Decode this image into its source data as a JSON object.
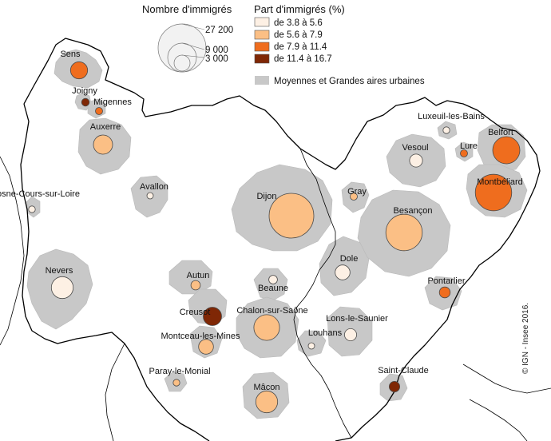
{
  "legend": {
    "size_title": "Nombre d'immigrés",
    "size_values": [
      "27 200",
      "9 000",
      "3 000"
    ],
    "share_title": "Part d'immigrés (%)",
    "classes": [
      {
        "label": "de 3.8 à 5.6",
        "color": "#fdf0e4"
      },
      {
        "label": "de 5.6 à 7.9",
        "color": "#fbbf85"
      },
      {
        "label": "de 7.9 à 11.4",
        "color": "#ef6d1e"
      },
      {
        "label": "de 11.4 à 16.7",
        "color": "#7f2705"
      }
    ],
    "area_label": "Moyennes et Grandes aires urbaines",
    "area_color": "#c8c8c8"
  },
  "credit": "© IGN - Insee 2016.",
  "cities": [
    {
      "name": "Sens",
      "class": 2,
      "immigres": 4000
    },
    {
      "name": "Joigny",
      "class": 3,
      "immigres": 800
    },
    {
      "name": "Migennes",
      "class": 2,
      "immigres": 700
    },
    {
      "name": "Auxerre",
      "class": 1,
      "immigres": 5000
    },
    {
      "name": "Avallon",
      "class": 0,
      "immigres": 500
    },
    {
      "name": "Cosne-Cours-sur-Loire",
      "class": 0,
      "immigres": 600
    },
    {
      "name": "Nevers",
      "class": 0,
      "immigres": 6500
    },
    {
      "name": "Autun",
      "class": 1,
      "immigres": 1200
    },
    {
      "name": "Creusot",
      "class": 3,
      "immigres": 4600
    },
    {
      "name": "Montceau-les-Mines",
      "class": 1,
      "immigres": 3000
    },
    {
      "name": "Paray-le-Monial",
      "class": 1,
      "immigres": 600
    },
    {
      "name": "Dijon",
      "class": 1,
      "immigres": 27200
    },
    {
      "name": "Beaune",
      "class": 0,
      "immigres": 1000
    },
    {
      "name": "Chalon-sur-Saône",
      "class": 1,
      "immigres": 9000
    },
    {
      "name": "Mâcon",
      "class": 1,
      "immigres": 6500
    },
    {
      "name": "Louhans",
      "class": 0,
      "immigres": 500
    },
    {
      "name": "Lons-le-Saunier",
      "class": 0,
      "immigres": 2000
    },
    {
      "name": "Gray",
      "class": 1,
      "immigres": 700
    },
    {
      "name": "Dole",
      "class": 0,
      "immigres": 3000
    },
    {
      "name": "Besançon",
      "class": 1,
      "immigres": 18000
    },
    {
      "name": "Vesoul",
      "class": 0,
      "immigres": 2300
    },
    {
      "name": "Luxeuil-les-Bains",
      "class": 0,
      "immigres": 600
    },
    {
      "name": "Lure",
      "class": 2,
      "immigres": 700
    },
    {
      "name": "Belfort",
      "class": 2,
      "immigres": 10000
    },
    {
      "name": "Montbéliard",
      "class": 2,
      "immigres": 18000
    },
    {
      "name": "Pontarlier",
      "class": 2,
      "immigres": 1600
    },
    {
      "name": "Saint-Claude",
      "class": 3,
      "immigres": 1500
    }
  ]
}
